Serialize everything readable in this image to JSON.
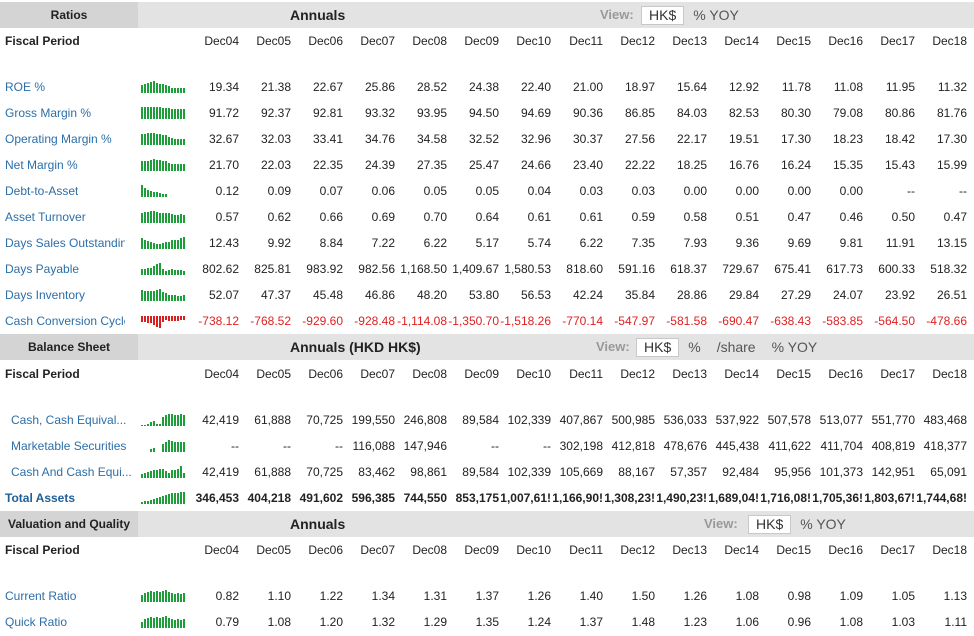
{
  "years": [
    "Dec04",
    "Dec05",
    "Dec06",
    "Dec07",
    "Dec08",
    "Dec09",
    "Dec10",
    "Dec11",
    "Dec12",
    "Dec13",
    "Dec14",
    "Dec15",
    "Dec16",
    "Dec17",
    "Dec18"
  ],
  "colors": {
    "positive_spark": "#1e9e3a",
    "negative_spark": "#d81e1e",
    "negative_value": "#e02020",
    "link": "#2c6ea8"
  },
  "sections": [
    {
      "label": "Ratios",
      "mode": "Annuals",
      "view_label": "View:",
      "view_options": [
        "HK$",
        "% YOY"
      ],
      "header_label": "Fiscal Period",
      "rows": [
        {
          "name": "ROE %",
          "spark": [
            19.34,
            21.38,
            22.67,
            25.86,
            28.52,
            24.38,
            22.4,
            21.0,
            18.97,
            15.64,
            12.92,
            11.78,
            11.08,
            11.95,
            11.32
          ],
          "values": [
            "19.34",
            "21.38",
            "22.67",
            "25.86",
            "28.52",
            "24.38",
            "22.40",
            "21.00",
            "18.97",
            "15.64",
            "12.92",
            "11.78",
            "11.08",
            "11.95",
            "11.32"
          ]
        },
        {
          "name": "Gross Margin %",
          "spark": [
            91.72,
            92.37,
            92.81,
            93.32,
            93.95,
            94.5,
            94.69,
            90.36,
            86.85,
            84.03,
            82.53,
            80.3,
            79.08,
            80.86,
            81.76
          ],
          "values": [
            "91.72",
            "92.37",
            "92.81",
            "93.32",
            "93.95",
            "94.50",
            "94.69",
            "90.36",
            "86.85",
            "84.03",
            "82.53",
            "80.30",
            "79.08",
            "80.86",
            "81.76"
          ]
        },
        {
          "name": "Operating Margin %",
          "spark": [
            32.67,
            32.03,
            33.41,
            34.76,
            34.58,
            32.52,
            32.96,
            30.37,
            27.56,
            22.17,
            19.51,
            17.3,
            18.23,
            18.42,
            17.3
          ],
          "values": [
            "32.67",
            "32.03",
            "33.41",
            "34.76",
            "34.58",
            "32.52",
            "32.96",
            "30.37",
            "27.56",
            "22.17",
            "19.51",
            "17.30",
            "18.23",
            "18.42",
            "17.30"
          ]
        },
        {
          "name": "Net Margin %",
          "spark": [
            21.7,
            22.03,
            22.35,
            24.39,
            27.35,
            25.47,
            24.66,
            23.4,
            22.22,
            18.25,
            16.76,
            16.24,
            15.35,
            15.43,
            15.99
          ],
          "values": [
            "21.70",
            "22.03",
            "22.35",
            "24.39",
            "27.35",
            "25.47",
            "24.66",
            "23.40",
            "22.22",
            "18.25",
            "16.76",
            "16.24",
            "15.35",
            "15.43",
            "15.99"
          ]
        },
        {
          "name": "Debt-to-Asset",
          "spark": [
            0.12,
            0.09,
            0.07,
            0.06,
            0.05,
            0.05,
            0.04,
            0.03,
            0.03,
            0.0,
            0.0,
            0.0,
            0.0,
            0,
            0
          ],
          "values": [
            "0.12",
            "0.09",
            "0.07",
            "0.06",
            "0.05",
            "0.05",
            "0.04",
            "0.03",
            "0.03",
            "0.00",
            "0.00",
            "0.00",
            "0.00",
            "--",
            "--"
          ]
        },
        {
          "name": "Asset Turnover",
          "spark": [
            0.57,
            0.62,
            0.66,
            0.69,
            0.7,
            0.64,
            0.61,
            0.61,
            0.59,
            0.58,
            0.51,
            0.47,
            0.46,
            0.5,
            0.47
          ],
          "values": [
            "0.57",
            "0.62",
            "0.66",
            "0.69",
            "0.70",
            "0.64",
            "0.61",
            "0.61",
            "0.59",
            "0.58",
            "0.51",
            "0.47",
            "0.46",
            "0.50",
            "0.47"
          ]
        },
        {
          "name": "Days Sales Outstanding",
          "spark": [
            12.43,
            9.92,
            8.84,
            7.22,
            6.22,
            5.17,
            5.74,
            6.22,
            7.35,
            7.93,
            9.36,
            9.69,
            9.81,
            11.91,
            13.15
          ],
          "values": [
            "12.43",
            "9.92",
            "8.84",
            "7.22",
            "6.22",
            "5.17",
            "5.74",
            "6.22",
            "7.35",
            "7.93",
            "9.36",
            "9.69",
            "9.81",
            "11.91",
            "13.15"
          ]
        },
        {
          "name": "Days Payable",
          "spark": [
            802.62,
            825.81,
            983.92,
            982.56,
            1168.5,
            1409.67,
            1580.53,
            818.6,
            591.16,
            618.37,
            729.67,
            675.41,
            617.73,
            600.33,
            518.32
          ],
          "values": [
            "802.62",
            "825.81",
            "983.92",
            "982.56",
            "1,168.50",
            "1,409.67",
            "1,580.53",
            "818.60",
            "591.16",
            "618.37",
            "729.67",
            "675.41",
            "617.73",
            "600.33",
            "518.32"
          ]
        },
        {
          "name": "Days Inventory",
          "spark": [
            52.07,
            47.37,
            45.48,
            46.86,
            48.2,
            53.8,
            56.53,
            42.24,
            35.84,
            28.86,
            29.84,
            27.29,
            24.07,
            23.92,
            26.51
          ],
          "values": [
            "52.07",
            "47.37",
            "45.48",
            "46.86",
            "48.20",
            "53.80",
            "56.53",
            "42.24",
            "35.84",
            "28.86",
            "29.84",
            "27.29",
            "24.07",
            "23.92",
            "26.51"
          ]
        },
        {
          "name": "Cash Conversion Cycle",
          "spark": [
            -738.12,
            -768.52,
            -929.6,
            -928.48,
            -1114.08,
            -1350.7,
            -1518.26,
            -770.14,
            -547.97,
            -581.58,
            -690.47,
            -638.43,
            -583.85,
            -564.5,
            -478.66
          ],
          "values": [
            "-738.12",
            "-768.52",
            "-929.60",
            "-928.48",
            "-1,114.08",
            "-1,350.70",
            "-1,518.26",
            "-770.14",
            "-547.97",
            "-581.58",
            "-690.47",
            "-638.43",
            "-583.85",
            "-564.50",
            "-478.66"
          ]
        }
      ]
    },
    {
      "label": "Balance Sheet",
      "mode": "Annuals (HKD HK$)",
      "view_label": "View:",
      "view_options": [
        "HK$",
        "%",
        "/share",
        "% YOY"
      ],
      "header_label": "Fiscal Period",
      "rows": [
        {
          "name": "Cash, Cash Equival...",
          "indent": true,
          "spark": [
            42419,
            61888,
            70725,
            199550,
            246808,
            89584,
            102339,
            407867,
            500985,
            536033,
            537922,
            507578,
            513077,
            551770,
            483468
          ],
          "values": [
            "42,419",
            "61,888",
            "70,725",
            "199,550",
            "246,808",
            "89,584",
            "102,339",
            "407,867",
            "500,985",
            "536,033",
            "537,922",
            "507,578",
            "513,077",
            "551,770",
            "483,468"
          ]
        },
        {
          "name": "Marketable Securities",
          "indent": true,
          "spark": [
            0,
            0,
            0,
            116088,
            147946,
            0,
            0,
            302198,
            412818,
            478676,
            445438,
            411622,
            411704,
            408819,
            418377
          ],
          "values": [
            "--",
            "--",
            "--",
            "116,088",
            "147,946",
            "--",
            "--",
            "302,198",
            "412,818",
            "478,676",
            "445,438",
            "411,622",
            "411,704",
            "408,819",
            "418,377"
          ]
        },
        {
          "name": "Cash And Cash Equi...",
          "indent": true,
          "spark": [
            42419,
            61888,
            70725,
            83462,
            98861,
            89584,
            102339,
            105669,
            88167,
            57357,
            92484,
            95956,
            101373,
            142951,
            65091
          ],
          "values": [
            "42,419",
            "61,888",
            "70,725",
            "83,462",
            "98,861",
            "89,584",
            "102,339",
            "105,669",
            "88,167",
            "57,357",
            "92,484",
            "95,956",
            "101,373",
            "142,951",
            "65,091"
          ]
        },
        {
          "name": "Total Assets",
          "bold": true,
          "spark": [
            346453,
            404218,
            491602,
            596385,
            744550,
            853175,
            1007615,
            1166907,
            1308233,
            1490233,
            1689041,
            1716087,
            1705365,
            1803671,
            1744686
          ],
          "values": [
            "346,453",
            "404,218",
            "491,602",
            "596,385",
            "744,550",
            "853,175",
            "1,007,61!",
            "1,166,90!",
            "1,308,23!",
            "1,490,23!",
            "1,689,04!",
            "1,716,08!",
            "1,705,36!",
            "1,803,67!",
            "1,744,68!"
          ]
        }
      ]
    },
    {
      "label": "Valuation and Quality",
      "mode": "Annuals",
      "view_label": "View:",
      "view_options": [
        "HK$",
        "% YOY"
      ],
      "header_label": "Fiscal Period",
      "rows": [
        {
          "name": "Current Ratio",
          "spark": [
            0.82,
            1.1,
            1.22,
            1.34,
            1.31,
            1.37,
            1.26,
            1.4,
            1.5,
            1.26,
            1.08,
            0.98,
            1.09,
            1.05,
            1.13
          ],
          "values": [
            "0.82",
            "1.10",
            "1.22",
            "1.34",
            "1.31",
            "1.37",
            "1.26",
            "1.40",
            "1.50",
            "1.26",
            "1.08",
            "0.98",
            "1.09",
            "1.05",
            "1.13"
          ]
        },
        {
          "name": "Quick Ratio",
          "spark": [
            0.79,
            1.08,
            1.2,
            1.32,
            1.29,
            1.35,
            1.24,
            1.37,
            1.48,
            1.23,
            1.06,
            0.96,
            1.08,
            1.03,
            1.11
          ],
          "values": [
            "0.79",
            "1.08",
            "1.20",
            "1.32",
            "1.29",
            "1.35",
            "1.24",
            "1.37",
            "1.48",
            "1.23",
            "1.06",
            "0.96",
            "1.08",
            "1.03",
            "1.11"
          ]
        }
      ]
    }
  ]
}
